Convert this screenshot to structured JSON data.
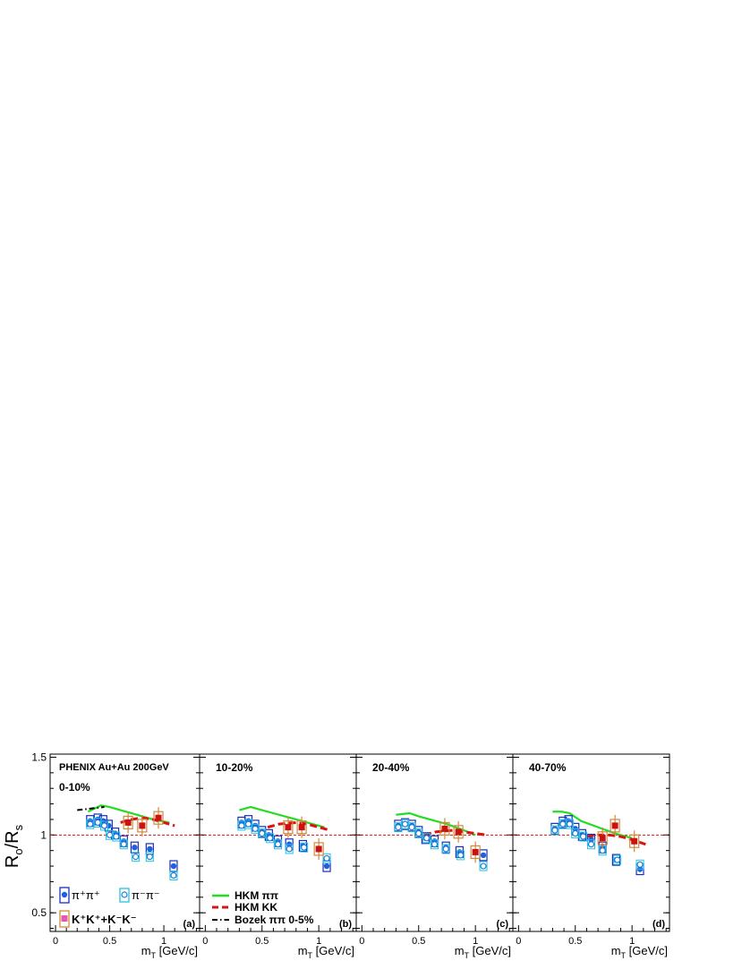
{
  "figure": {
    "y_axis_label": "R",
    "y_axis_label_sub_o": "o",
    "y_axis_label_mid": "/R",
    "y_axis_label_sub_s": "s",
    "x_axis_label": "m",
    "x_axis_label_sub": "T",
    "x_axis_label_unit": "[GeV/c]",
    "legend_left": [
      {
        "key": "pipi_plus",
        "text": "π⁺π⁺",
        "color": "#1f4fd6"
      },
      {
        "key": "pipi_minus",
        "text": "π⁻π⁻",
        "color": "#2aa8d8"
      },
      {
        "key": "kaons",
        "text": "K⁺K⁺+K⁻K⁻",
        "color": "#e05ab0"
      }
    ],
    "legend_right": [
      {
        "key": "hkm_pipi",
        "text": "HKM ππ",
        "color": "#22dd22",
        "dash": "solid"
      },
      {
        "key": "hkm_kk",
        "text": "HKM KK",
        "color": "#dd1111",
        "dash": "dashed"
      },
      {
        "key": "bozek",
        "text": "Bozek ππ 0-5%",
        "color": "#000000",
        "dash": "dashdot"
      }
    ],
    "colors": {
      "pipi_plus_box": "#1a2fb8",
      "pipi_plus_marker": "#2060e0",
      "pipi_minus_box": "#22c4e0",
      "pipi_minus_marker": "#1e7ed8",
      "kaon_box": "#d08a3a",
      "kaon_marker": "#cc1111",
      "hkm_pipi": "#22dd22",
      "hkm_kk": "#dd1111",
      "bozek": "#000000",
      "reference": "#dd1111"
    }
  },
  "chart_data": [
    {
      "type": "scatter",
      "panel": "(a)",
      "title_top": "PHENIX Au+Au 200GeV",
      "centrality": "0-10%",
      "xlim": [
        -0.05,
        1.33
      ],
      "ylim": [
        0.38,
        1.52
      ],
      "xticks": [
        "0",
        "0.5",
        "1"
      ],
      "yticks": [
        "0.5",
        "1",
        "1.5"
      ],
      "reference_y": 1.0,
      "series": [
        {
          "key": "pipi_plus",
          "x": [
            0.32,
            0.39,
            0.44,
            0.49,
            0.55,
            0.63,
            0.73,
            0.87,
            1.09
          ],
          "y": [
            1.09,
            1.1,
            1.09,
            1.06,
            1.01,
            0.96,
            0.92,
            0.91,
            0.8
          ]
        },
        {
          "key": "pipi_minus",
          "x": [
            0.32,
            0.39,
            0.45,
            0.5,
            0.56,
            0.63,
            0.74,
            0.87,
            1.09
          ],
          "y": [
            1.07,
            1.08,
            1.06,
            1.0,
            0.99,
            0.94,
            0.86,
            0.86,
            0.74
          ]
        },
        {
          "key": "kaons",
          "x": [
            0.67,
            0.8,
            0.95
          ],
          "y": [
            1.08,
            1.06,
            1.11
          ]
        },
        {
          "key": "hkm_pipi",
          "x": [
            0.3,
            0.42,
            0.5,
            0.6,
            0.75,
            0.9,
            1.05
          ],
          "y": [
            1.15,
            1.19,
            1.18,
            1.16,
            1.13,
            1.1,
            1.08
          ]
        },
        {
          "key": "hkm_kk",
          "x": [
            0.6,
            0.7,
            0.8,
            0.9,
            1.0,
            1.1
          ],
          "y": [
            1.08,
            1.1,
            1.11,
            1.1,
            1.08,
            1.06
          ]
        },
        {
          "key": "bozek",
          "x": [
            0.2,
            0.45
          ],
          "y": [
            1.16,
            1.18
          ]
        }
      ]
    },
    {
      "type": "scatter",
      "panel": "(b)",
      "centrality": "10-20%",
      "xlim": [
        -0.05,
        1.33
      ],
      "ylim": [
        0.38,
        1.52
      ],
      "xticks": [
        "0",
        "0.5",
        "1"
      ],
      "yticks": [],
      "reference_y": 1.0,
      "series": [
        {
          "key": "pipi_plus",
          "x": [
            0.32,
            0.38,
            0.44,
            0.5,
            0.56,
            0.64,
            0.74,
            0.86,
            1.07
          ],
          "y": [
            1.08,
            1.09,
            1.06,
            1.02,
            1.0,
            0.96,
            0.94,
            0.93,
            0.8
          ]
        },
        {
          "key": "pipi_minus",
          "x": [
            0.32,
            0.38,
            0.44,
            0.5,
            0.57,
            0.64,
            0.74,
            0.87,
            1.07
          ],
          "y": [
            1.06,
            1.07,
            1.04,
            1.01,
            0.98,
            0.94,
            0.91,
            0.92,
            0.85
          ]
        },
        {
          "key": "kaons",
          "x": [
            0.73,
            0.85,
            1.0
          ],
          "y": [
            1.05,
            1.05,
            0.91
          ]
        },
        {
          "key": "hkm_pipi",
          "x": [
            0.3,
            0.4,
            0.5,
            0.6,
            0.75,
            0.9,
            1.05
          ],
          "y": [
            1.16,
            1.18,
            1.16,
            1.14,
            1.11,
            1.08,
            1.05
          ]
        },
        {
          "key": "hkm_kk",
          "x": [
            0.55,
            0.65,
            0.8,
            0.9,
            1.0,
            1.1
          ],
          "y": [
            1.05,
            1.07,
            1.08,
            1.07,
            1.05,
            1.03
          ]
        }
      ]
    },
    {
      "type": "scatter",
      "panel": "(c)",
      "centrality": "20-40%",
      "xlim": [
        -0.05,
        1.33
      ],
      "ylim": [
        0.38,
        1.52
      ],
      "xticks": [
        "0",
        "0.5",
        "1"
      ],
      "yticks": [],
      "reference_y": 1.0,
      "series": [
        {
          "key": "pipi_plus",
          "x": [
            0.32,
            0.38,
            0.44,
            0.5,
            0.56,
            0.64,
            0.74,
            0.86,
            1.07
          ],
          "y": [
            1.06,
            1.07,
            1.06,
            1.02,
            0.98,
            0.96,
            0.92,
            0.89,
            0.87
          ]
        },
        {
          "key": "pipi_minus",
          "x": [
            0.32,
            0.38,
            0.44,
            0.5,
            0.57,
            0.64,
            0.74,
            0.87,
            1.07
          ],
          "y": [
            1.05,
            1.07,
            1.05,
            1.01,
            0.98,
            0.94,
            0.91,
            0.87,
            0.8
          ]
        },
        {
          "key": "kaons",
          "x": [
            0.73,
            0.85,
            1.0
          ],
          "y": [
            1.04,
            1.02,
            0.89
          ]
        },
        {
          "key": "hkm_pipi",
          "x": [
            0.3,
            0.42,
            0.5,
            0.6,
            0.75,
            0.9,
            1.0
          ],
          "y": [
            1.13,
            1.14,
            1.12,
            1.1,
            1.07,
            1.03,
            1.0
          ]
        },
        {
          "key": "hkm_kk",
          "x": [
            0.55,
            0.65,
            0.8,
            0.9,
            1.0,
            1.1
          ],
          "y": [
            1.0,
            1.02,
            1.03,
            1.02,
            1.01,
            1.0
          ]
        }
      ]
    },
    {
      "type": "scatter",
      "panel": "(d)",
      "centrality": "40-70%",
      "xlim": [
        -0.05,
        1.33
      ],
      "ylim": [
        0.38,
        1.52
      ],
      "xticks": [
        "0",
        "0.5",
        "1"
      ],
      "yticks": [],
      "reference_y": 1.0,
      "series": [
        {
          "key": "pipi_plus",
          "x": [
            0.32,
            0.39,
            0.44,
            0.5,
            0.56,
            0.64,
            0.74,
            0.86,
            1.07
          ],
          "y": [
            1.04,
            1.08,
            1.09,
            1.04,
            1.0,
            0.97,
            0.92,
            0.84,
            0.78
          ]
        },
        {
          "key": "pipi_minus",
          "x": [
            0.32,
            0.39,
            0.45,
            0.5,
            0.57,
            0.64,
            0.74,
            0.87,
            1.07
          ],
          "y": [
            1.03,
            1.07,
            1.07,
            1.01,
            0.99,
            0.94,
            0.9,
            0.84,
            0.81
          ]
        },
        {
          "key": "kaons",
          "x": [
            0.74,
            0.85,
            1.02
          ],
          "y": [
            0.98,
            1.06,
            0.96
          ]
        },
        {
          "key": "hkm_pipi",
          "x": [
            0.3,
            0.38,
            0.45,
            0.55,
            0.7,
            0.85,
            1.0
          ],
          "y": [
            1.15,
            1.15,
            1.14,
            1.09,
            1.05,
            1.01,
            0.98
          ]
        },
        {
          "key": "hkm_kk",
          "x": [
            0.6,
            0.7,
            0.8,
            0.9,
            1.0,
            1.12
          ],
          "y": [
            0.99,
            1.0,
            1.0,
            0.99,
            0.97,
            0.94
          ]
        }
      ]
    }
  ]
}
